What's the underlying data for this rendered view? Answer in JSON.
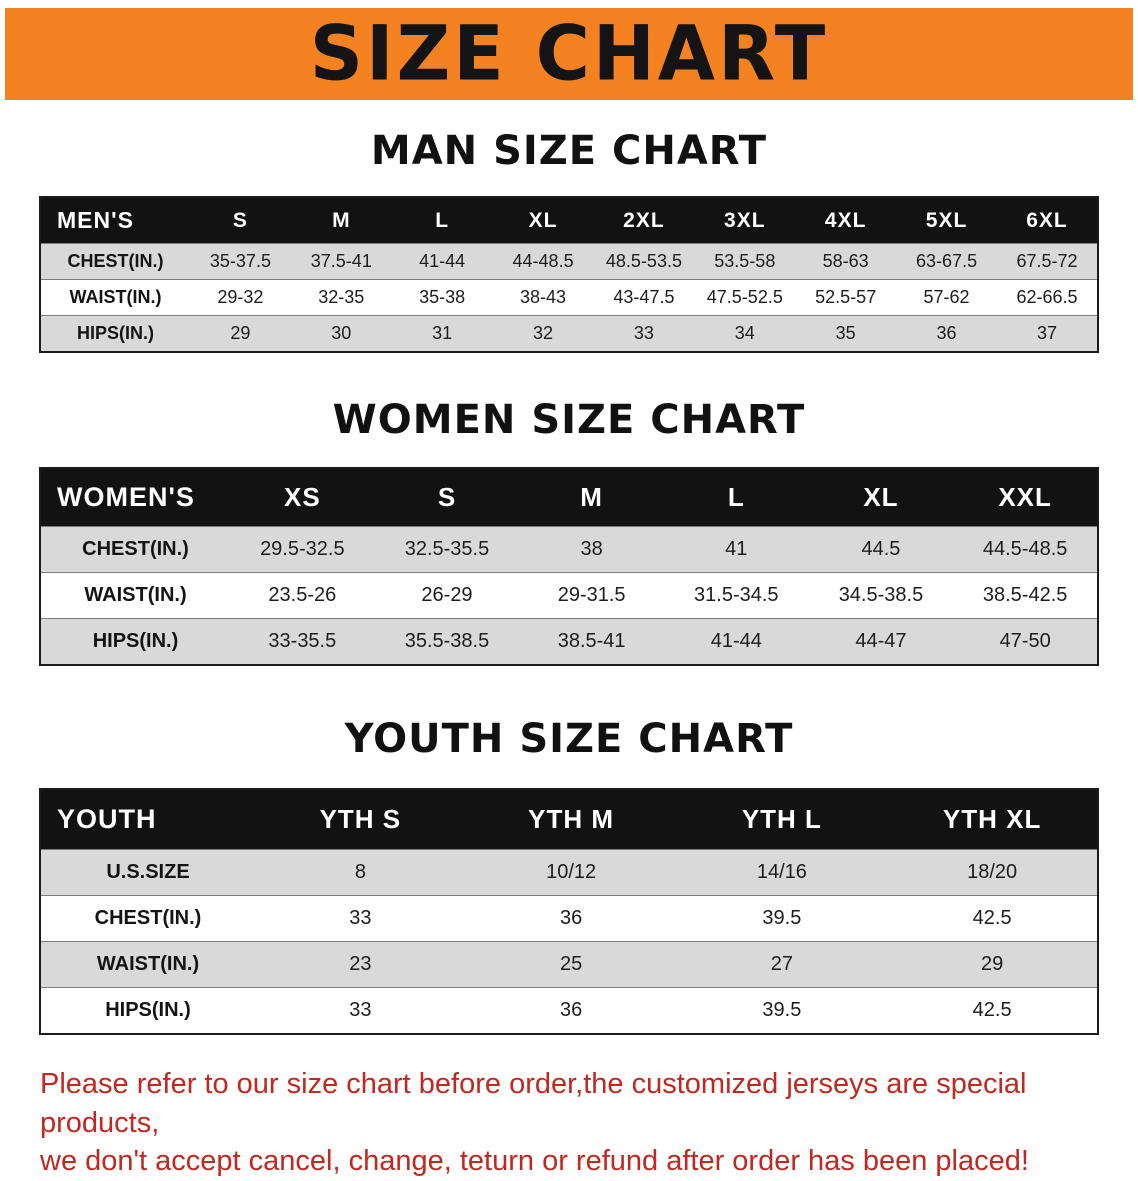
{
  "banner": {
    "title": "SIZE CHART"
  },
  "men": {
    "heading": "MAN SIZE CHART",
    "table": {
      "header": [
        "MEN'S",
        "S",
        "M",
        "L",
        "XL",
        "2XL",
        "3XL",
        "4XL",
        "5XL",
        "6XL"
      ],
      "rows": [
        [
          "CHEST(IN.)",
          "35-37.5",
          "37.5-41",
          "41-44",
          "44-48.5",
          "48.5-53.5",
          "53.5-58",
          "58-63",
          "63-67.5",
          "67.5-72"
        ],
        [
          "WAIST(IN.)",
          "29-32",
          "32-35",
          "35-38",
          "38-43",
          "43-47.5",
          "47.5-52.5",
          "52.5-57",
          "57-62",
          "62-66.5"
        ],
        [
          "HIPS(IN.)",
          "29",
          "30",
          "31",
          "32",
          "33",
          "34",
          "35",
          "36",
          "37"
        ]
      ]
    }
  },
  "women": {
    "heading": "WOMEN SIZE CHART",
    "table": {
      "header": [
        "WOMEN'S",
        "XS",
        "S",
        "M",
        "L",
        "XL",
        "XXL"
      ],
      "rows": [
        [
          "CHEST(IN.)",
          "29.5-32.5",
          "32.5-35.5",
          "38",
          "41",
          "44.5",
          "44.5-48.5"
        ],
        [
          "WAIST(IN.)",
          "23.5-26",
          "26-29",
          "29-31.5",
          "31.5-34.5",
          "34.5-38.5",
          "38.5-42.5"
        ],
        [
          "HIPS(IN.)",
          "33-35.5",
          "35.5-38.5",
          "38.5-41",
          "41-44",
          "44-47",
          "47-50"
        ]
      ]
    }
  },
  "youth": {
    "heading": "YOUTH SIZE CHART",
    "table": {
      "header": [
        "YOUTH",
        "YTH S",
        "YTH M",
        "YTH L",
        "YTH XL"
      ],
      "rows": [
        [
          "U.S.SIZE",
          "8",
          "10/12",
          "14/16",
          "18/20"
        ],
        [
          "CHEST(IN.)",
          "33",
          "36",
          "39.5",
          "42.5"
        ],
        [
          "WAIST(IN.)",
          "23",
          "25",
          "27",
          "29"
        ],
        [
          "HIPS(IN.)",
          "33",
          "36",
          "39.5",
          "42.5"
        ]
      ]
    }
  },
  "disclaimer": {
    "line1": "Please refer to our size chart before order,the customized jerseys are special products,",
    "line2": "we don't accept cancel, change, teturn or refund after order has been placed!"
  },
  "colors": {
    "banner_bg": "#f58220",
    "table_header_bg": "#121212",
    "row_alt_bg": "#d9d9d9",
    "disclaimer_red": "#c1281f"
  }
}
